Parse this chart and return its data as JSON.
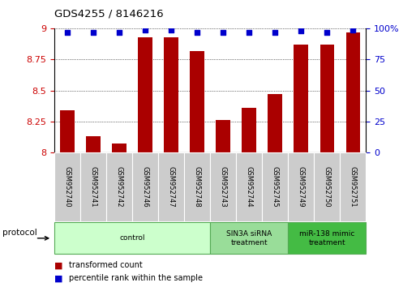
{
  "title": "GDS4255 / 8146216",
  "samples": [
    "GSM952740",
    "GSM952741",
    "GSM952742",
    "GSM952746",
    "GSM952747",
    "GSM952748",
    "GSM952743",
    "GSM952744",
    "GSM952745",
    "GSM952749",
    "GSM952750",
    "GSM952751"
  ],
  "transformed_count": [
    8.34,
    8.13,
    8.07,
    8.93,
    8.93,
    8.82,
    8.26,
    8.36,
    8.47,
    8.87,
    8.87,
    8.97
  ],
  "percentile_rank": [
    97,
    97,
    97,
    99,
    99,
    97,
    97,
    97,
    97,
    98,
    97,
    99
  ],
  "ylim_left": [
    8.0,
    9.0
  ],
  "ylim_right": [
    0,
    100
  ],
  "yticks_left": [
    8.0,
    8.25,
    8.5,
    8.75,
    9.0
  ],
  "yticks_right": [
    0,
    25,
    50,
    75,
    100
  ],
  "bar_color": "#AA0000",
  "dot_color": "#0000CC",
  "dot_size": 25,
  "grid_color": "#000000",
  "protocol_groups": [
    {
      "label": "control",
      "start": 0,
      "end": 5,
      "color": "#CCFFCC",
      "edge_color": "#55AA55"
    },
    {
      "label": "SIN3A siRNA\ntreatment",
      "start": 6,
      "end": 8,
      "color": "#99DD99",
      "edge_color": "#55AA55"
    },
    {
      "label": "miR-138 mimic\ntreatment",
      "start": 9,
      "end": 11,
      "color": "#44BB44",
      "edge_color": "#55AA55"
    }
  ],
  "tick_color_left": "#CC0000",
  "tick_color_right": "#0000CC",
  "legend_items": [
    {
      "label": "transformed count",
      "color": "#AA0000"
    },
    {
      "label": "percentile rank within the sample",
      "color": "#0000CC"
    }
  ],
  "bg_color": "#FFFFFF",
  "sample_box_color": "#CCCCCC"
}
